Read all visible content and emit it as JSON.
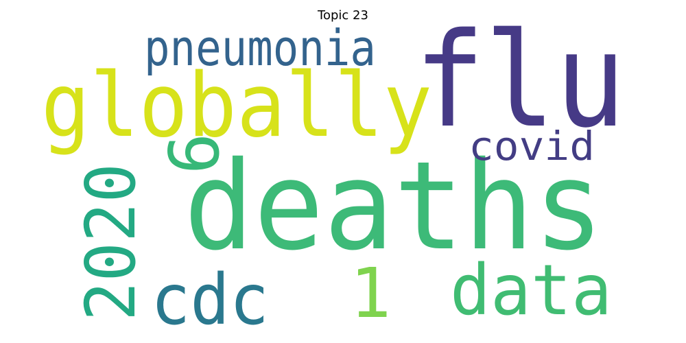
{
  "title": "Topic 23",
  "words": [
    {
      "text": "deaths",
      "color": "#3dba78",
      "orientation": "horizontal"
    },
    {
      "text": "flu",
      "color": "#463a86",
      "orientation": "horizontal"
    },
    {
      "text": "globally",
      "color": "#d7e21a",
      "orientation": "horizontal"
    },
    {
      "text": "pneumonia",
      "color": "#33638d",
      "orientation": "horizontal"
    },
    {
      "text": "covid",
      "color": "#433d84",
      "orientation": "horizontal"
    },
    {
      "text": "data",
      "color": "#40bc72",
      "orientation": "horizontal"
    },
    {
      "text": "cdc",
      "color": "#2a788e",
      "orientation": "horizontal"
    },
    {
      "text": "2020",
      "color": "#23a983",
      "orientation": "vertical"
    },
    {
      "text": "6",
      "color": "#37b878",
      "orientation": "vertical"
    },
    {
      "text": "1",
      "color": "#7fd34e",
      "orientation": "horizontal"
    }
  ]
}
